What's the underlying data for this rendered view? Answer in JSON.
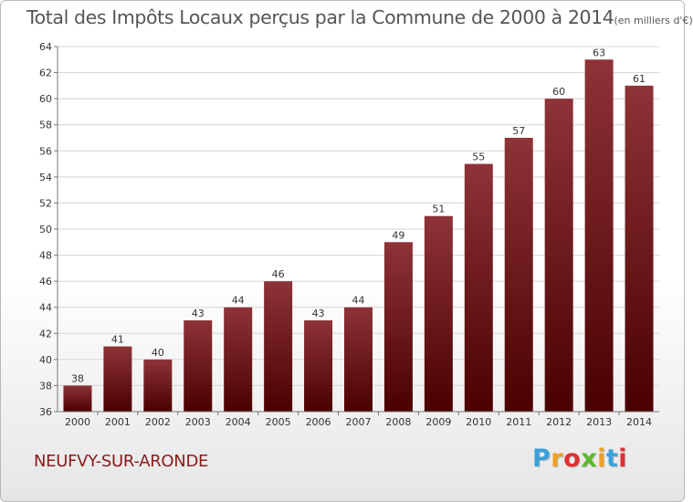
{
  "title": {
    "main": "Total des Impôts Locaux perçus par la Commune de 2000 à 2014",
    "unit": "(en milliers d'€)"
  },
  "commune": "NEUFVY-SUR-ARONDE",
  "logo": {
    "letters": [
      "P",
      "r",
      "o",
      "x",
      "i",
      "t",
      "i"
    ],
    "colors": [
      "#3aa0dc",
      "#f0a020",
      "#e03030",
      "#5cb82c",
      "#f0a020",
      "#3aa0dc",
      "#e03030"
    ]
  },
  "colors": {
    "bar_top": "#8e3338",
    "bar_bottom": "#4a0000",
    "grid": "#d4d4d4",
    "axis": "#777777"
  },
  "chart_data": {
    "type": "bar",
    "title": "Total des Impôts Locaux perçus par la Commune de 2000 à 2014 (en milliers d'€)",
    "xlabel": "",
    "ylabel": "",
    "categories": [
      "2000",
      "2001",
      "2002",
      "2003",
      "2004",
      "2005",
      "2006",
      "2007",
      "2008",
      "2009",
      "2010",
      "2011",
      "2012",
      "2013",
      "2014"
    ],
    "values": [
      38,
      41,
      40,
      43,
      44,
      46,
      43,
      44,
      49,
      51,
      55,
      57,
      60,
      63,
      61
    ],
    "ylim": [
      36,
      64
    ],
    "yticks": [
      "36",
      "38",
      "40",
      "42",
      "44",
      "46",
      "48",
      "50",
      "52",
      "54",
      "56",
      "58",
      "60",
      "62",
      "64"
    ],
    "grid": true,
    "legend": "none"
  }
}
